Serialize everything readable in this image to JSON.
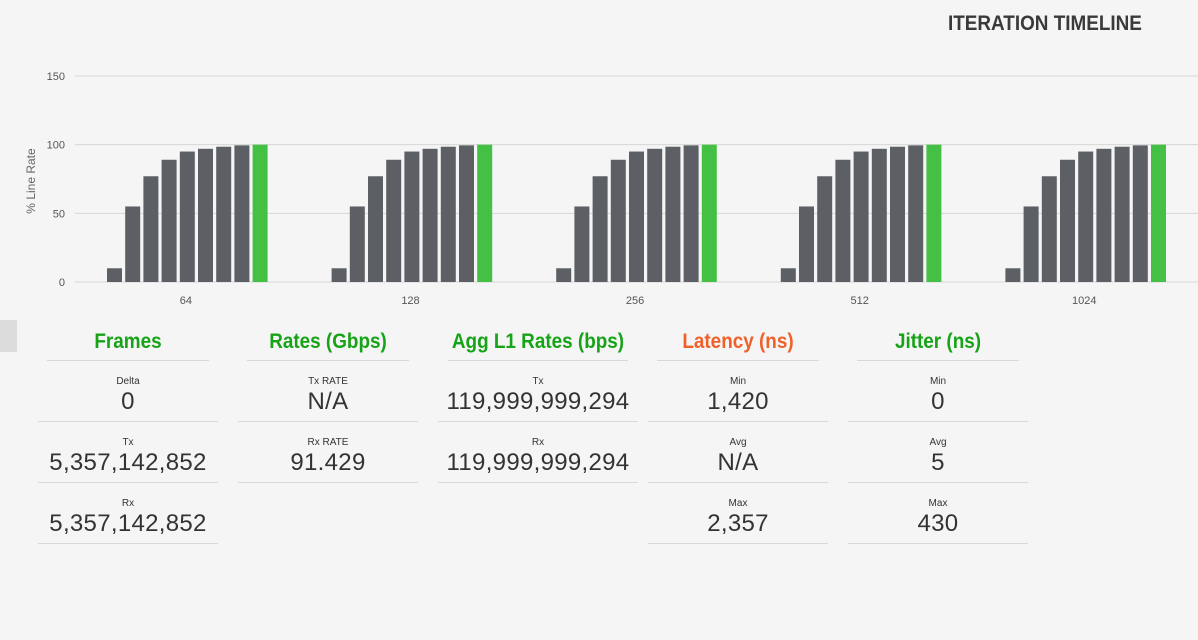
{
  "page": {
    "title": "ITERATION TIMELINE"
  },
  "colors": {
    "bar": "#5c6064",
    "bar_final": "#44c044",
    "green": "#17a317",
    "orange": "#f0602a",
    "grid": "#d6d6d6"
  },
  "chart_data": {
    "type": "bar",
    "ylabel": "% Line Rate",
    "ylim": [
      0,
      150
    ],
    "yticks": [
      0,
      50,
      100,
      150
    ],
    "grid": true,
    "categories": [
      "64",
      "128",
      "256",
      "512",
      "1024"
    ],
    "iterations_per_category": [
      10,
      55,
      77,
      89,
      95,
      97,
      98.5,
      99.5,
      100
    ],
    "final_iteration_highlight": "green"
  },
  "stats": [
    {
      "header": "Frames",
      "color": "green",
      "cells": [
        {
          "label": "Delta",
          "value": "0"
        },
        {
          "label": "Tx",
          "value": "5,357,142,852"
        },
        {
          "label": "Rx",
          "value": "5,357,142,852"
        }
      ]
    },
    {
      "header": "Rates (Gbps)",
      "color": "green",
      "cells": [
        {
          "label": "Tx RATE",
          "value": "N/A"
        },
        {
          "label": "Rx RATE",
          "value": "91.429"
        }
      ]
    },
    {
      "header": "Agg L1 Rates (bps)",
      "color": "green",
      "cells": [
        {
          "label": "Tx",
          "value": "119,999,999,294"
        },
        {
          "label": "Rx",
          "value": "119,999,999,294"
        }
      ]
    },
    {
      "header": "Latency (ns)",
      "color": "orange",
      "cells": [
        {
          "label": "Min",
          "value": "1,420"
        },
        {
          "label": "Avg",
          "value": "N/A"
        },
        {
          "label": "Max",
          "value": "2,357"
        }
      ]
    },
    {
      "header": "Jitter (ns)",
      "color": "green",
      "cells": [
        {
          "label": "Min",
          "value": "0"
        },
        {
          "label": "Avg",
          "value": "5"
        },
        {
          "label": "Max",
          "value": "430"
        }
      ]
    }
  ]
}
